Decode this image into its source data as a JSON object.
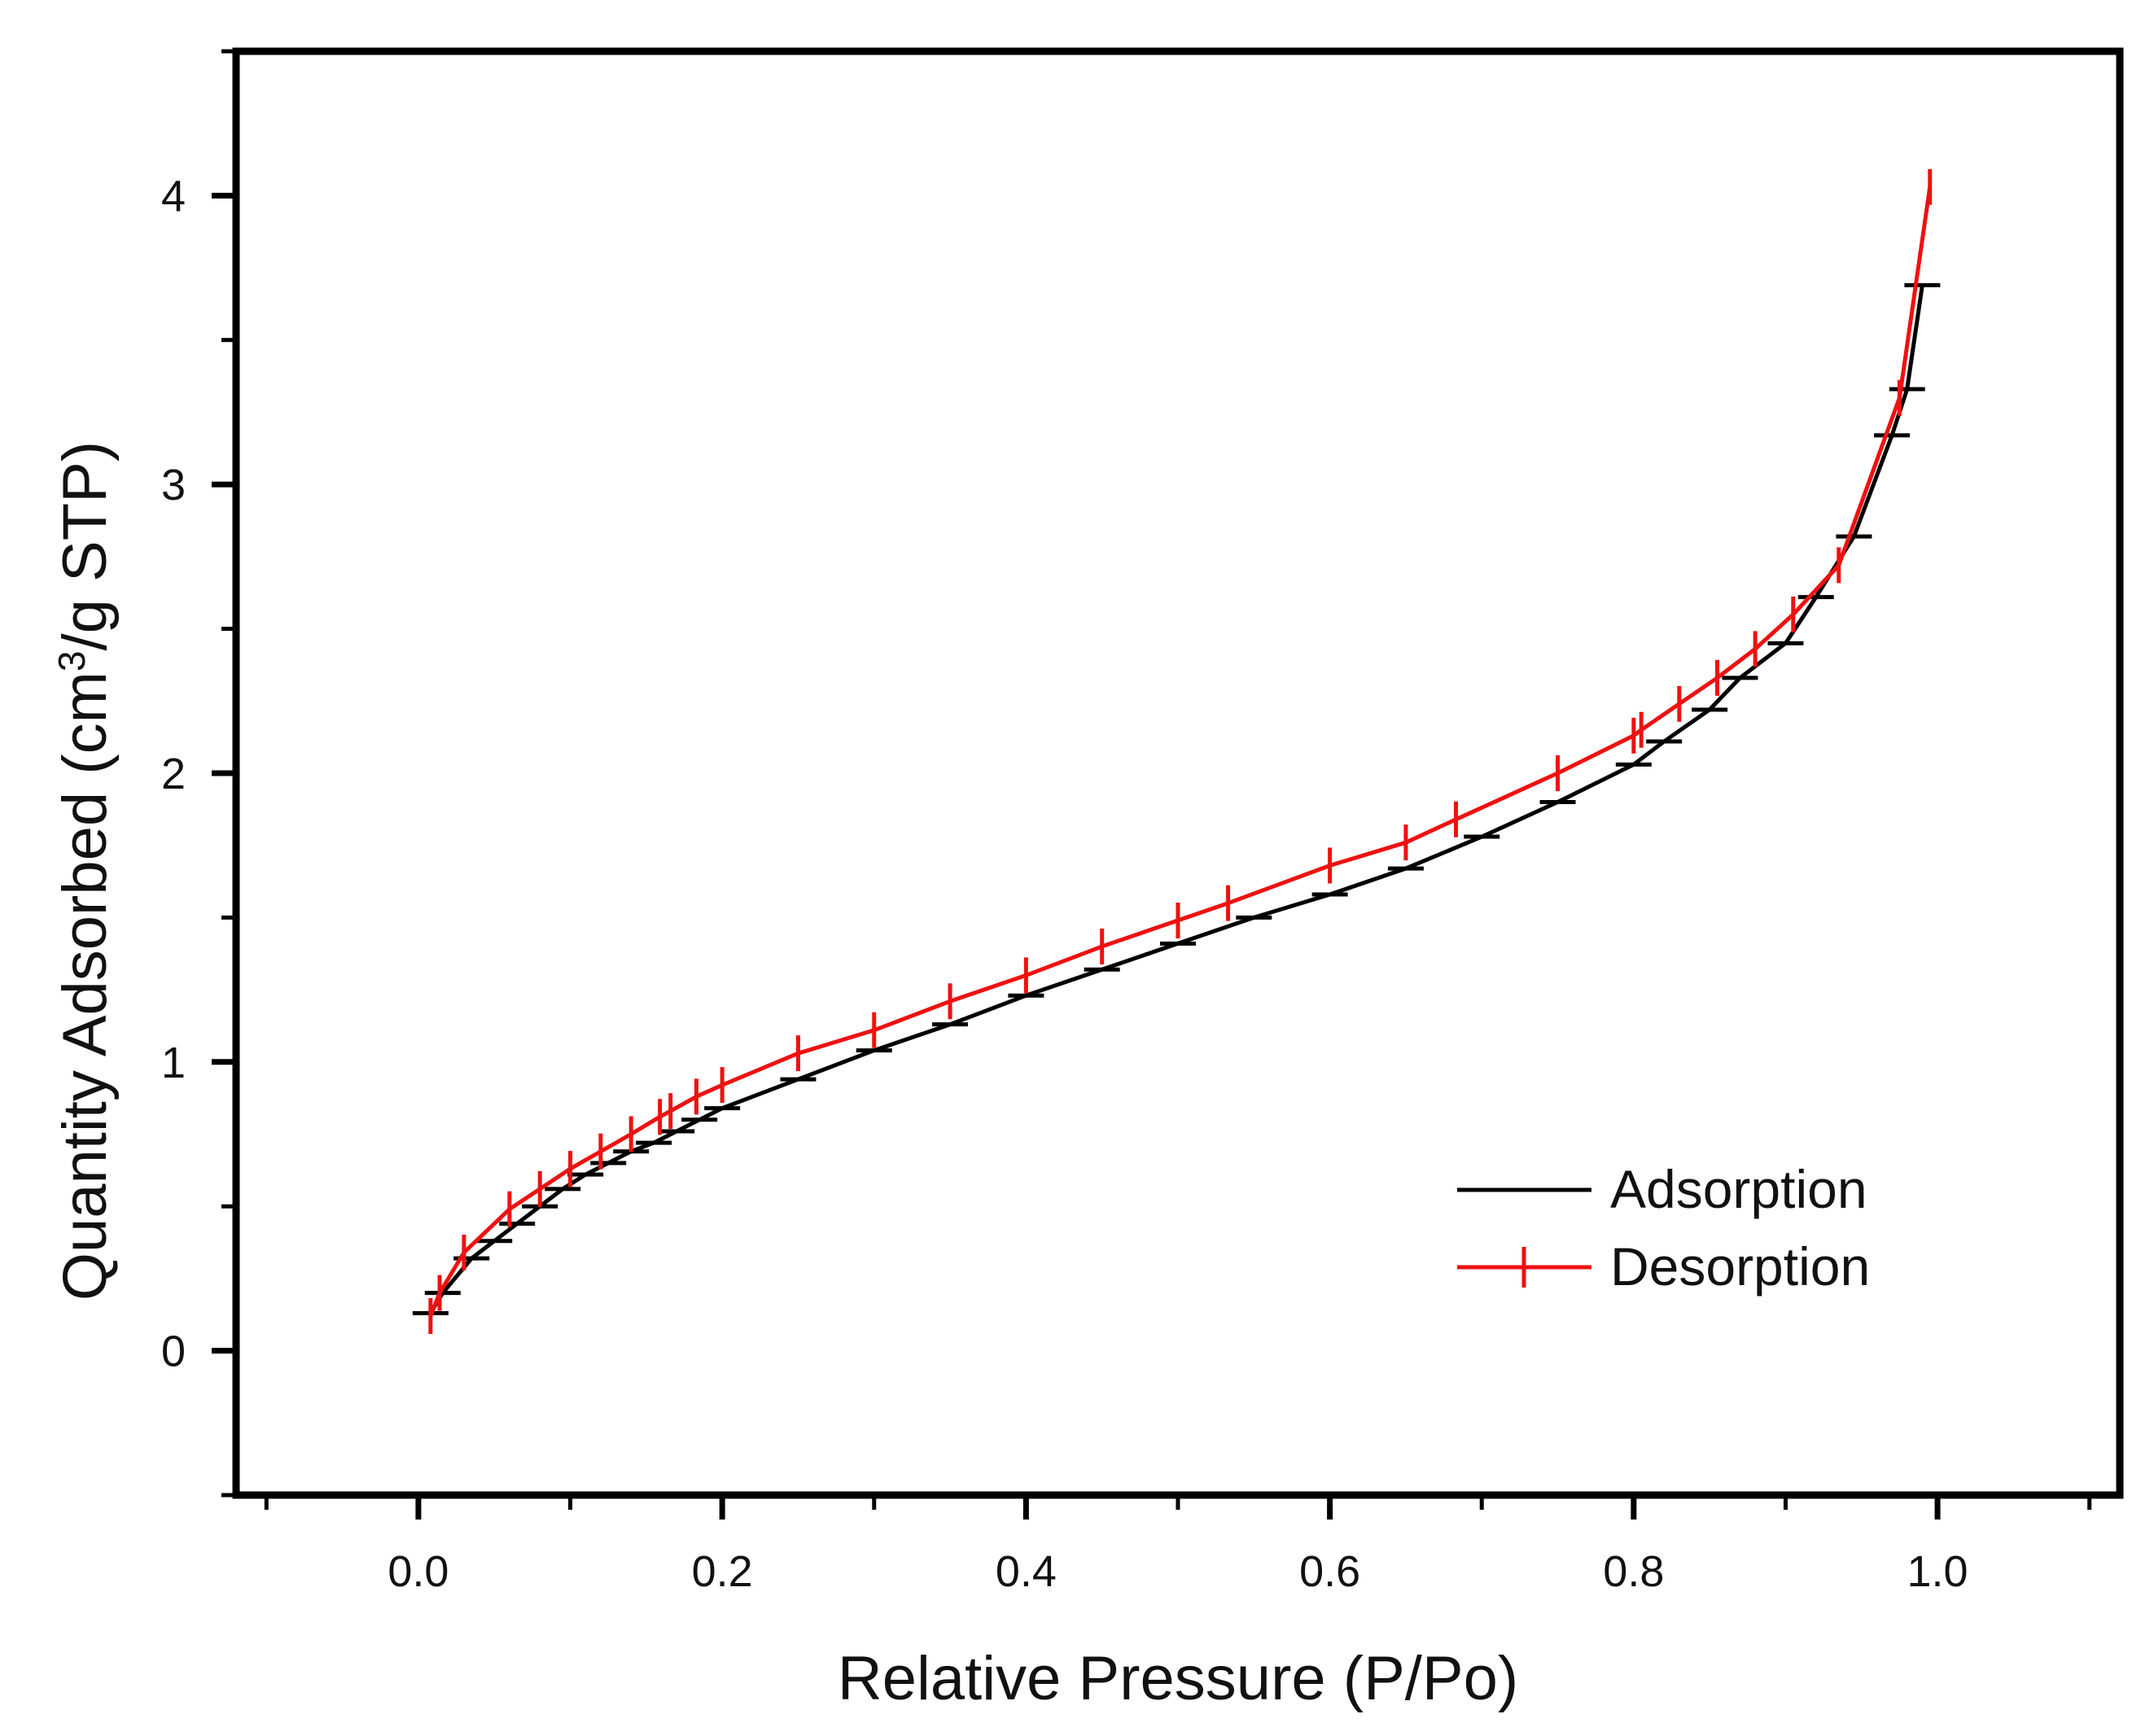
{
  "chart_data": {
    "type": "line",
    "title": "",
    "xlabel": "Relative Pressure (P/Po)",
    "ylabel_parts": [
      "Quantity Adsorbed (cm",
      "3",
      "/g STP)"
    ],
    "xlim": [
      -0.12,
      1.12
    ],
    "ylim": [
      -0.5,
      4.5
    ],
    "x_ticks": [
      0.0,
      0.2,
      0.4,
      0.6,
      0.8,
      1.0
    ],
    "x_tick_labels": [
      "0.0",
      "0.2",
      "0.4",
      "0.6",
      "0.8",
      "1.0"
    ],
    "y_ticks": [
      0,
      1,
      2,
      3,
      4
    ],
    "y_tick_labels": [
      "0",
      "1",
      "2",
      "3",
      "4"
    ],
    "legend_position": "bottom-right",
    "series": [
      {
        "name": "Adsorption",
        "color": "#000000",
        "marker": "horizontal-dash",
        "x": [
          0.008,
          0.016,
          0.035,
          0.05,
          0.065,
          0.08,
          0.095,
          0.11,
          0.125,
          0.14,
          0.155,
          0.17,
          0.185,
          0.2,
          0.25,
          0.3,
          0.35,
          0.4,
          0.45,
          0.5,
          0.55,
          0.6,
          0.65,
          0.7,
          0.75,
          0.8,
          0.82,
          0.85,
          0.87,
          0.9,
          0.92,
          0.945,
          0.97,
          0.98,
          0.99
        ],
        "y": [
          0.13,
          0.2,
          0.32,
          0.38,
          0.44,
          0.5,
          0.56,
          0.61,
          0.65,
          0.69,
          0.72,
          0.76,
          0.8,
          0.84,
          0.94,
          1.04,
          1.13,
          1.23,
          1.32,
          1.41,
          1.5,
          1.58,
          1.67,
          1.78,
          1.9,
          2.03,
          2.11,
          2.22,
          2.33,
          2.45,
          2.61,
          2.82,
          3.17,
          3.33,
          3.69
        ]
      },
      {
        "name": "Desorption",
        "color": "#ee1111",
        "marker": "vertical-dash",
        "x": [
          0.995,
          0.975,
          0.935,
          0.905,
          0.88,
          0.855,
          0.83,
          0.805,
          0.8,
          0.75,
          0.683,
          0.65,
          0.6,
          0.533,
          0.5,
          0.45,
          0.4,
          0.35,
          0.3,
          0.25,
          0.2,
          0.183,
          0.166,
          0.159,
          0.14,
          0.12,
          0.1,
          0.08,
          0.06,
          0.03,
          0.014,
          0.008
        ],
        "y": [
          4.03,
          3.3,
          2.72,
          2.55,
          2.43,
          2.33,
          2.24,
          2.15,
          2.13,
          2.0,
          1.84,
          1.76,
          1.68,
          1.55,
          1.49,
          1.4,
          1.3,
          1.21,
          1.11,
          1.03,
          0.92,
          0.88,
          0.83,
          0.81,
          0.75,
          0.69,
          0.63,
          0.56,
          0.49,
          0.34,
          0.2,
          0.12
        ]
      }
    ]
  }
}
